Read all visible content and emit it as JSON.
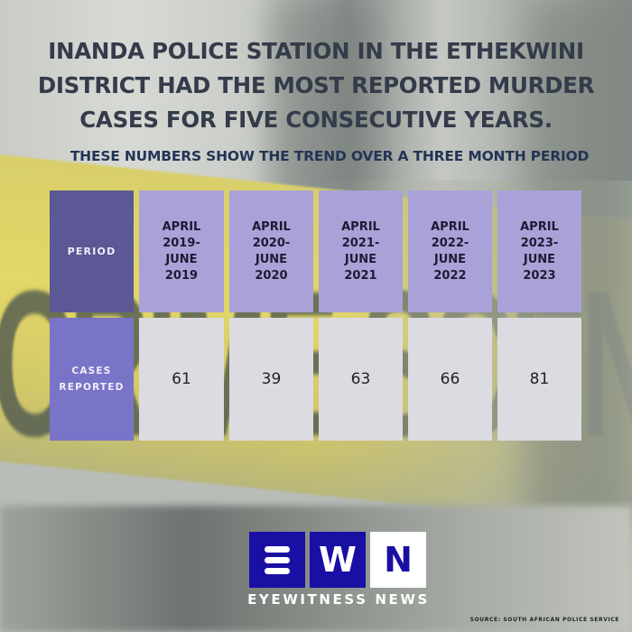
{
  "headline": "INANDA POLICE STATION IN THE ETHEKWINI DISTRICT HAD THE MOST REPORTED MURDER CASES FOR FIVE CONSECUTIVE YEARS.",
  "headline_lines": [
    "INANDA POLICE STATION IN THE ETHEKWINI",
    "DISTRICT HAD THE MOST REPORTED MURDER",
    "CASES FOR FIVE CONSECUTIVE YEARS."
  ],
  "subtitle": "THESE NUMBERS SHOW THE TREND OVER A THREE MONTH PERIOD",
  "table": {
    "header_label": "PERIOD",
    "row_label_lines": [
      "CASES",
      "REPORTED"
    ],
    "periods": [
      [
        "APRIL",
        "2019-",
        "JUNE",
        "2019"
      ],
      [
        "APRIL",
        "2020-",
        "JUNE",
        "2020"
      ],
      [
        "APRIL",
        "2021-",
        "JUNE",
        "2021"
      ],
      [
        "APRIL",
        "2022-",
        "JUNE",
        "2022"
      ],
      [
        "APRIL",
        "2023-",
        "JUNE",
        "2023"
      ]
    ],
    "values": [
      "61",
      "39",
      "63",
      "66",
      "81"
    ]
  },
  "chart_data": {
    "type": "table",
    "title": "INANDA POLICE STATION IN THE ETHEKWINI DISTRICT HAD THE MOST REPORTED MURDER CASES FOR FIVE CONSECUTIVE YEARS.",
    "subtitle": "THESE NUMBERS SHOW THE TREND OVER A THREE MONTH PERIOD",
    "columns": [
      "PERIOD",
      "CASES REPORTED"
    ],
    "categories": [
      "APRIL 2019-JUNE 2019",
      "APRIL 2020-JUNE 2020",
      "APRIL 2021-JUNE 2021",
      "APRIL 2022-JUNE 2022",
      "APRIL 2023-JUNE 2023"
    ],
    "values": [
      61,
      39,
      63,
      66,
      81
    ]
  },
  "logo": {
    "letters": [
      "E",
      "W",
      "N"
    ],
    "brand": "EYEWITNESS NEWS",
    "colors": {
      "blue": "#1a0fa3",
      "white": "#ffffff"
    }
  },
  "source": "SOURCE: SOUTH AFRICAN POLICE SERVICE",
  "colors": {
    "header_label_bg": "#5b5895",
    "row_label_bg": "#7a74c8",
    "period_bg": "#a9a2d8",
    "value_bg": "#dcdbe2",
    "title_text": "#343b4a",
    "subtitle_text": "#233456"
  }
}
